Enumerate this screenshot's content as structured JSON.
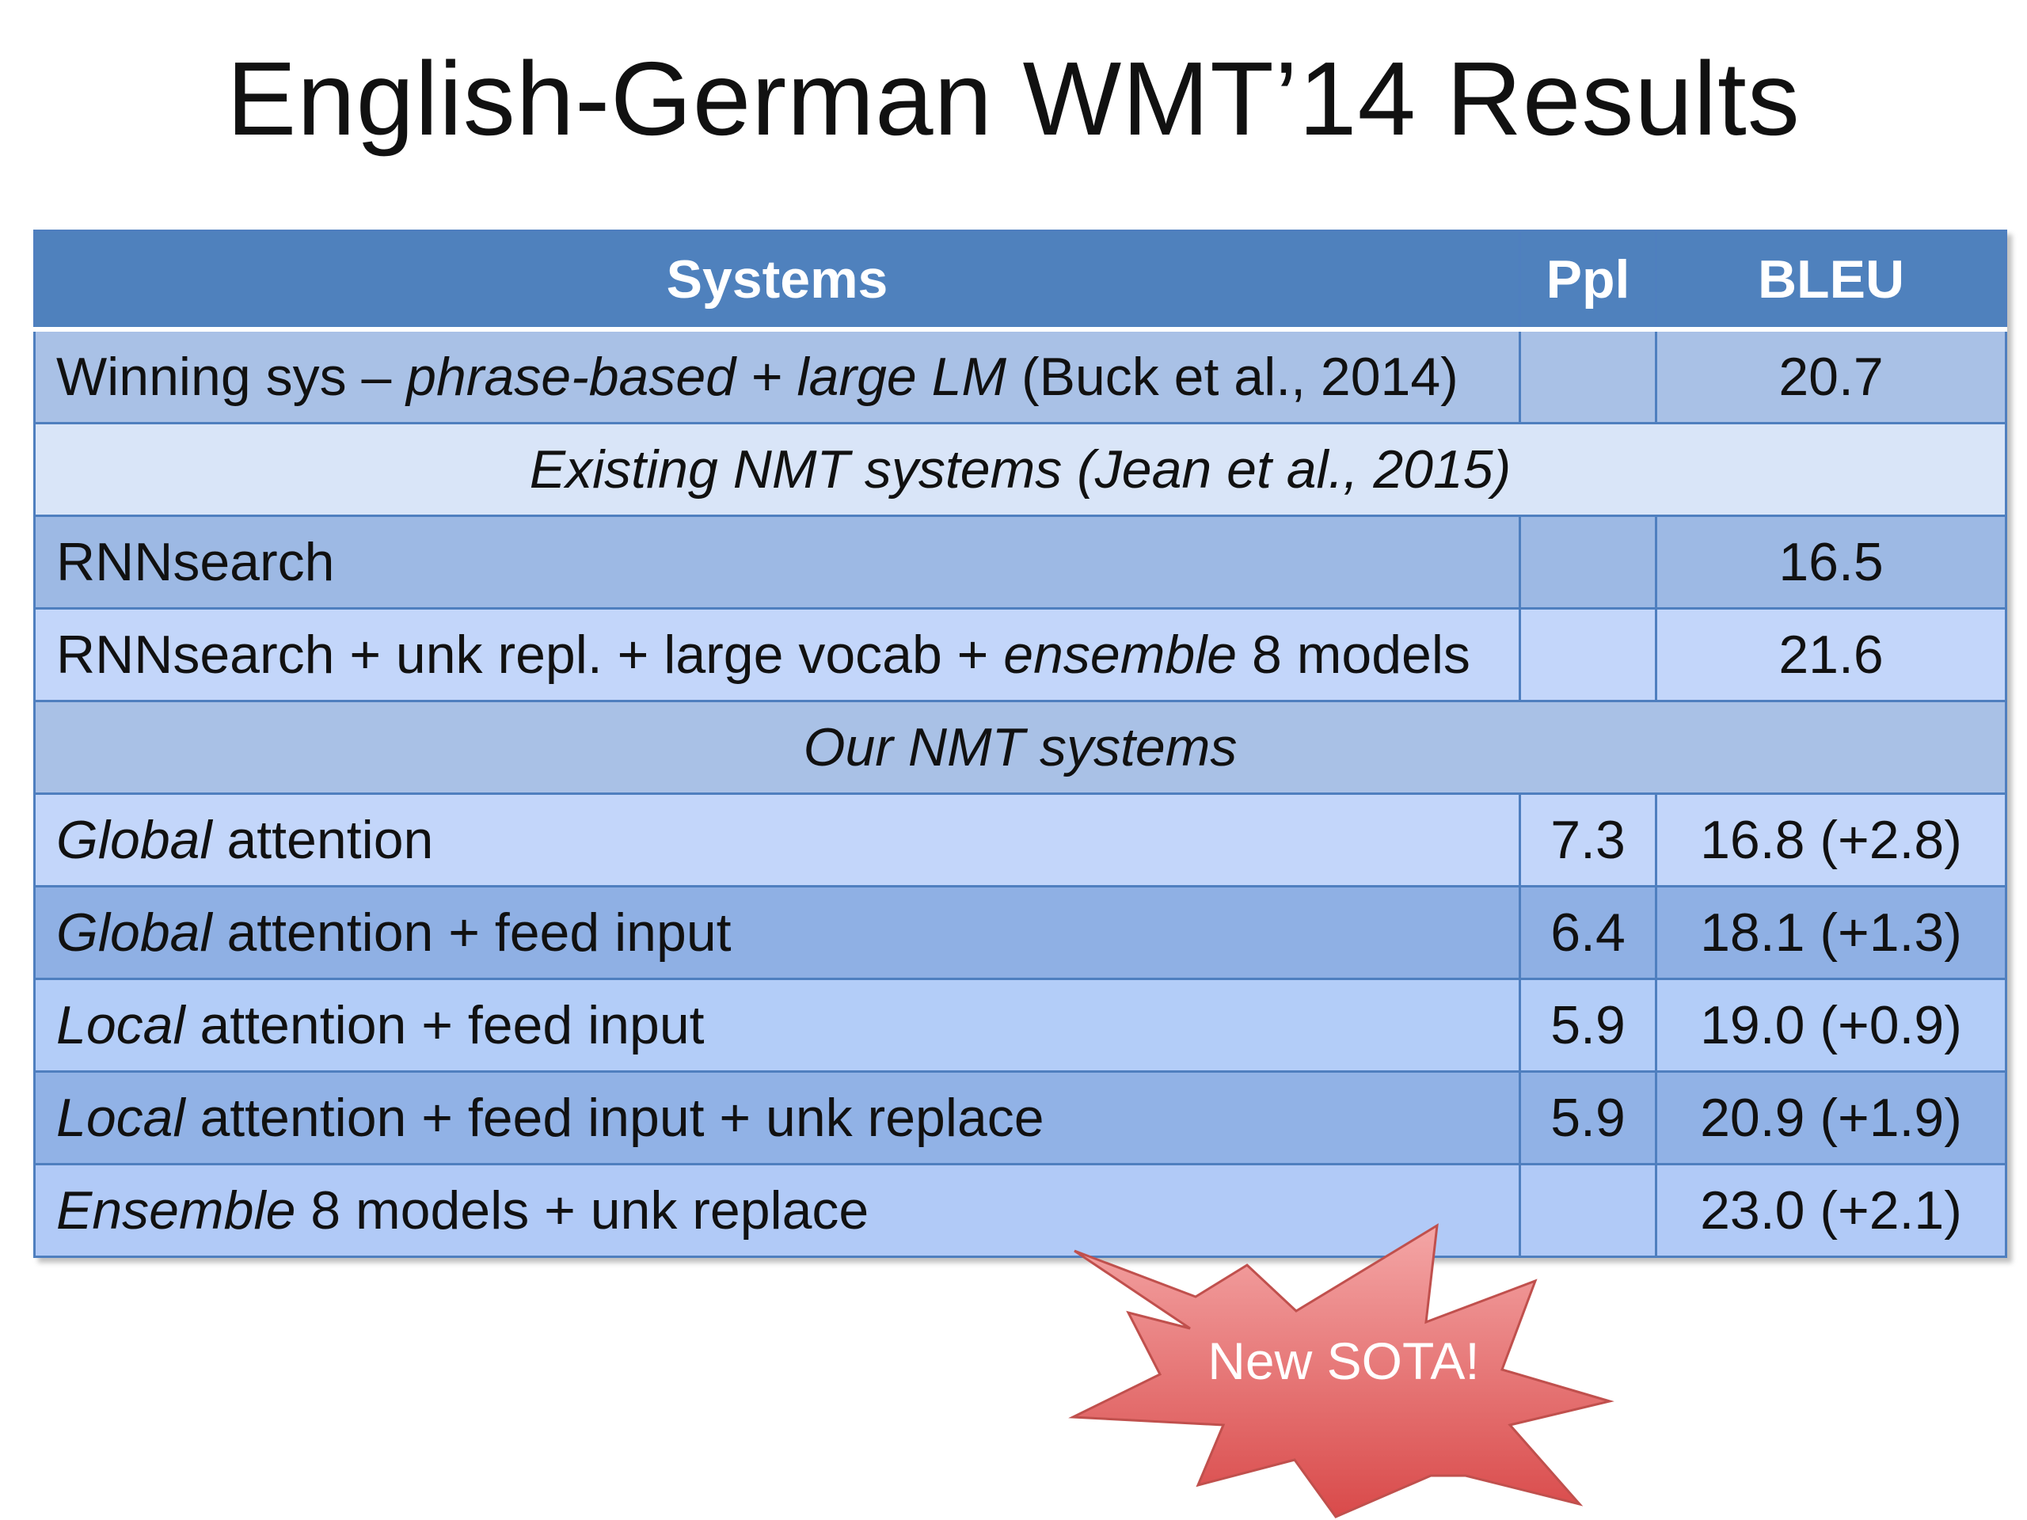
{
  "slide": {
    "title": "English-German WMT’14 Results"
  },
  "table": {
    "headers": {
      "systems": "Systems",
      "ppl": "Ppl",
      "bleu": "BLEU"
    },
    "winning": {
      "pre": "Winning sys – ",
      "italic": "phrase-based + large LM",
      "post": " (Buck et al., 2014)",
      "ppl": "",
      "bleu": "20.7"
    },
    "existing_section": "Existing NMT systems (Jean et al., 2015)",
    "rnnsearch": {
      "label": "RNNsearch",
      "ppl": "",
      "bleu": "16.5"
    },
    "rnnsearch_ens": {
      "pre": "RNNsearch + unk repl. + large vocab + ",
      "italic": "ensemble",
      "post": " 8 models",
      "ppl": "",
      "bleu": "21.6"
    },
    "ours_section": "Our NMT systems",
    "ours": [
      {
        "italic": "Global",
        "rest": " attention",
        "ppl": "7.3",
        "bleu": "16.8 (+2.8)"
      },
      {
        "italic": "Global",
        "rest": " attention + feed input",
        "ppl": "6.4",
        "bleu": "18.1 (+1.3)"
      },
      {
        "italic": "Local",
        "rest": " attention + feed input",
        "ppl": "5.9",
        "bleu": "19.0 (+0.9)"
      },
      {
        "italic": "Local",
        "rest": " attention + feed input + unk replace",
        "ppl": "5.9",
        "bleu": "20.9 (+1.9)"
      },
      {
        "italic": "Ensemble",
        "rest": " 8 models + unk replace",
        "ppl": "",
        "bleu": "23.0 (+2.1)"
      }
    ]
  },
  "badge": {
    "text": "New SOTA!",
    "fill_top": "#f4a6a6",
    "fill_bottom": "#d94a4a",
    "stroke": "#c0504d"
  }
}
